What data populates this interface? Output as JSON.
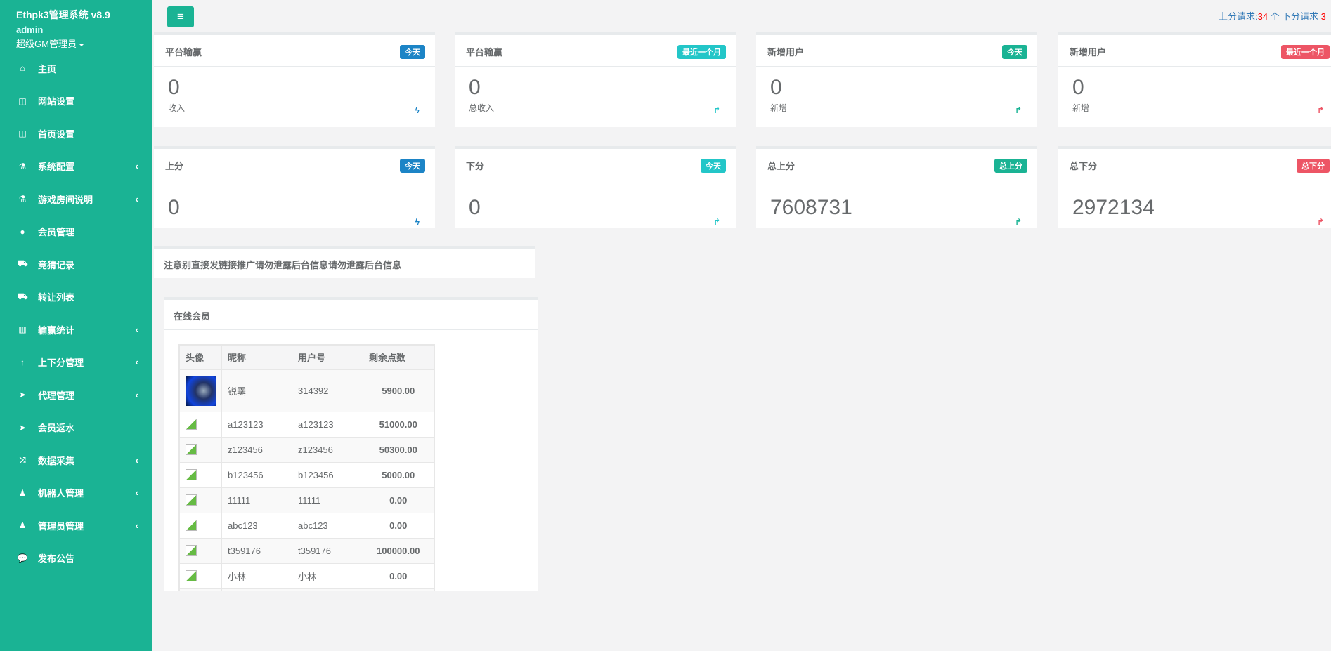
{
  "sidebar": {
    "brand": "Ethpk3管理系统 v8.9",
    "user": "admin",
    "role": "超级GM管理员",
    "items": [
      {
        "label": "主页",
        "icon": "home-icon",
        "glyph": "⌂",
        "sub": false
      },
      {
        "label": "网站设置",
        "icon": "columns-icon",
        "glyph": "◫",
        "sub": false
      },
      {
        "label": "首页设置",
        "icon": "columns-icon",
        "glyph": "◫",
        "sub": false
      },
      {
        "label": "系统配置",
        "icon": "flask-icon",
        "glyph": "⚗",
        "sub": true
      },
      {
        "label": "游戏房间说明",
        "icon": "flask-icon",
        "glyph": "⚗",
        "sub": true
      },
      {
        "label": "会员管理",
        "icon": "user-icon",
        "glyph": "●",
        "sub": false
      },
      {
        "label": "竞猜记录",
        "icon": "cab-icon",
        "glyph": "⛟",
        "sub": false
      },
      {
        "label": "转让列表",
        "icon": "cab-icon",
        "glyph": "⛟",
        "sub": false
      },
      {
        "label": "输赢统计",
        "icon": "bar-chart-icon",
        "glyph": "▥",
        "sub": true
      },
      {
        "label": "上下分管理",
        "icon": "level-up-icon",
        "glyph": "↑",
        "sub": true
      },
      {
        "label": "代理管理",
        "icon": "paper-plane-icon",
        "glyph": "➤",
        "sub": true
      },
      {
        "label": "会员返水",
        "icon": "paper-plane-icon",
        "glyph": "➤",
        "sub": false
      },
      {
        "label": "数据采集",
        "icon": "random-icon",
        "glyph": "⤨",
        "sub": true
      },
      {
        "label": "机器人管理",
        "icon": "male-icon",
        "glyph": "♟",
        "sub": true
      },
      {
        "label": "管理员管理",
        "icon": "male-icon",
        "glyph": "♟",
        "sub": true
      },
      {
        "label": "发布公告",
        "icon": "comment-icon",
        "glyph": "💬",
        "sub": false
      }
    ],
    "chevron": "‹"
  },
  "topbar": {
    "menu_icon": "bars-icon",
    "up_label": "上分请求:",
    "up_count": "34",
    "up_unit": " 个",
    "down_label": "下分请求 ",
    "down_count": "3"
  },
  "cards": [
    {
      "title": "平台输赢",
      "badge": "今天",
      "badge_color": "#1c84c6",
      "value": "0",
      "sub": "收入",
      "icon": "bolt-icon",
      "glyph": "ϟ",
      "icon_color": "#1c84c6"
    },
    {
      "title": "平台输赢",
      "badge": "最近一个月",
      "badge_color": "#23c6c8",
      "value": "0",
      "sub": "总收入",
      "icon": "level-up-icon",
      "glyph": "↱",
      "icon_color": "#23c6c8"
    },
    {
      "title": "新增用户",
      "badge": "今天",
      "badge_color": "#1ab394",
      "value": "0",
      "sub": "新增",
      "icon": "level-up-icon",
      "glyph": "↱",
      "icon_color": "#1ab394"
    },
    {
      "title": "新增用户",
      "badge": "最近一个月",
      "badge_color": "#ed5565",
      "value": "0",
      "sub": "新增",
      "icon": "level-up-icon",
      "glyph": "↱",
      "icon_color": "#ed5565"
    },
    {
      "title": "上分",
      "badge": "今天",
      "badge_color": "#1c84c6",
      "value": "0",
      "icon": "bolt-icon",
      "glyph": "ϟ",
      "icon_color": "#1c84c6"
    },
    {
      "title": "下分",
      "badge": "今天",
      "badge_color": "#23c6c8",
      "value": "0",
      "icon": "level-up-icon",
      "glyph": "↱",
      "icon_color": "#23c6c8"
    },
    {
      "title": "总上分",
      "badge": "总上分",
      "badge_color": "#1ab394",
      "value": "7608731",
      "icon": "level-up-icon",
      "glyph": "↱",
      "icon_color": "#1ab394"
    },
    {
      "title": "总下分",
      "badge": "总下分",
      "badge_color": "#ed5565",
      "value": "2972134",
      "icon": "level-up-icon",
      "glyph": "↱",
      "icon_color": "#ed5565"
    }
  ],
  "notice": "注意别直接发链接推广请勿泄露后台信息请勿泄露后台信息",
  "members": {
    "title": "在线会员",
    "columns": [
      "头像",
      "昵称",
      "用户号",
      "剩余点数"
    ],
    "rows": [
      {
        "avatar": "photo",
        "nick": "锐霙",
        "id": "314392",
        "points": "5900.00"
      },
      {
        "avatar": "broken",
        "nick": "a123123",
        "id": "a123123",
        "points": "51000.00"
      },
      {
        "avatar": "broken",
        "nick": "z123456",
        "id": "z123456",
        "points": "50300.00"
      },
      {
        "avatar": "broken",
        "nick": "b123456",
        "id": "b123456",
        "points": "5000.00"
      },
      {
        "avatar": "broken",
        "nick": "11111",
        "id": "11111",
        "points": "0.00"
      },
      {
        "avatar": "broken",
        "nick": "abc123",
        "id": "abc123",
        "points": "0.00"
      },
      {
        "avatar": "broken",
        "nick": "t359176",
        "id": "t359176",
        "points": "100000.00"
      },
      {
        "avatar": "broken",
        "nick": "小林",
        "id": "小林",
        "points": "0.00"
      },
      {
        "avatar": "broken",
        "nick": "",
        "id": "",
        "points": ""
      }
    ]
  }
}
